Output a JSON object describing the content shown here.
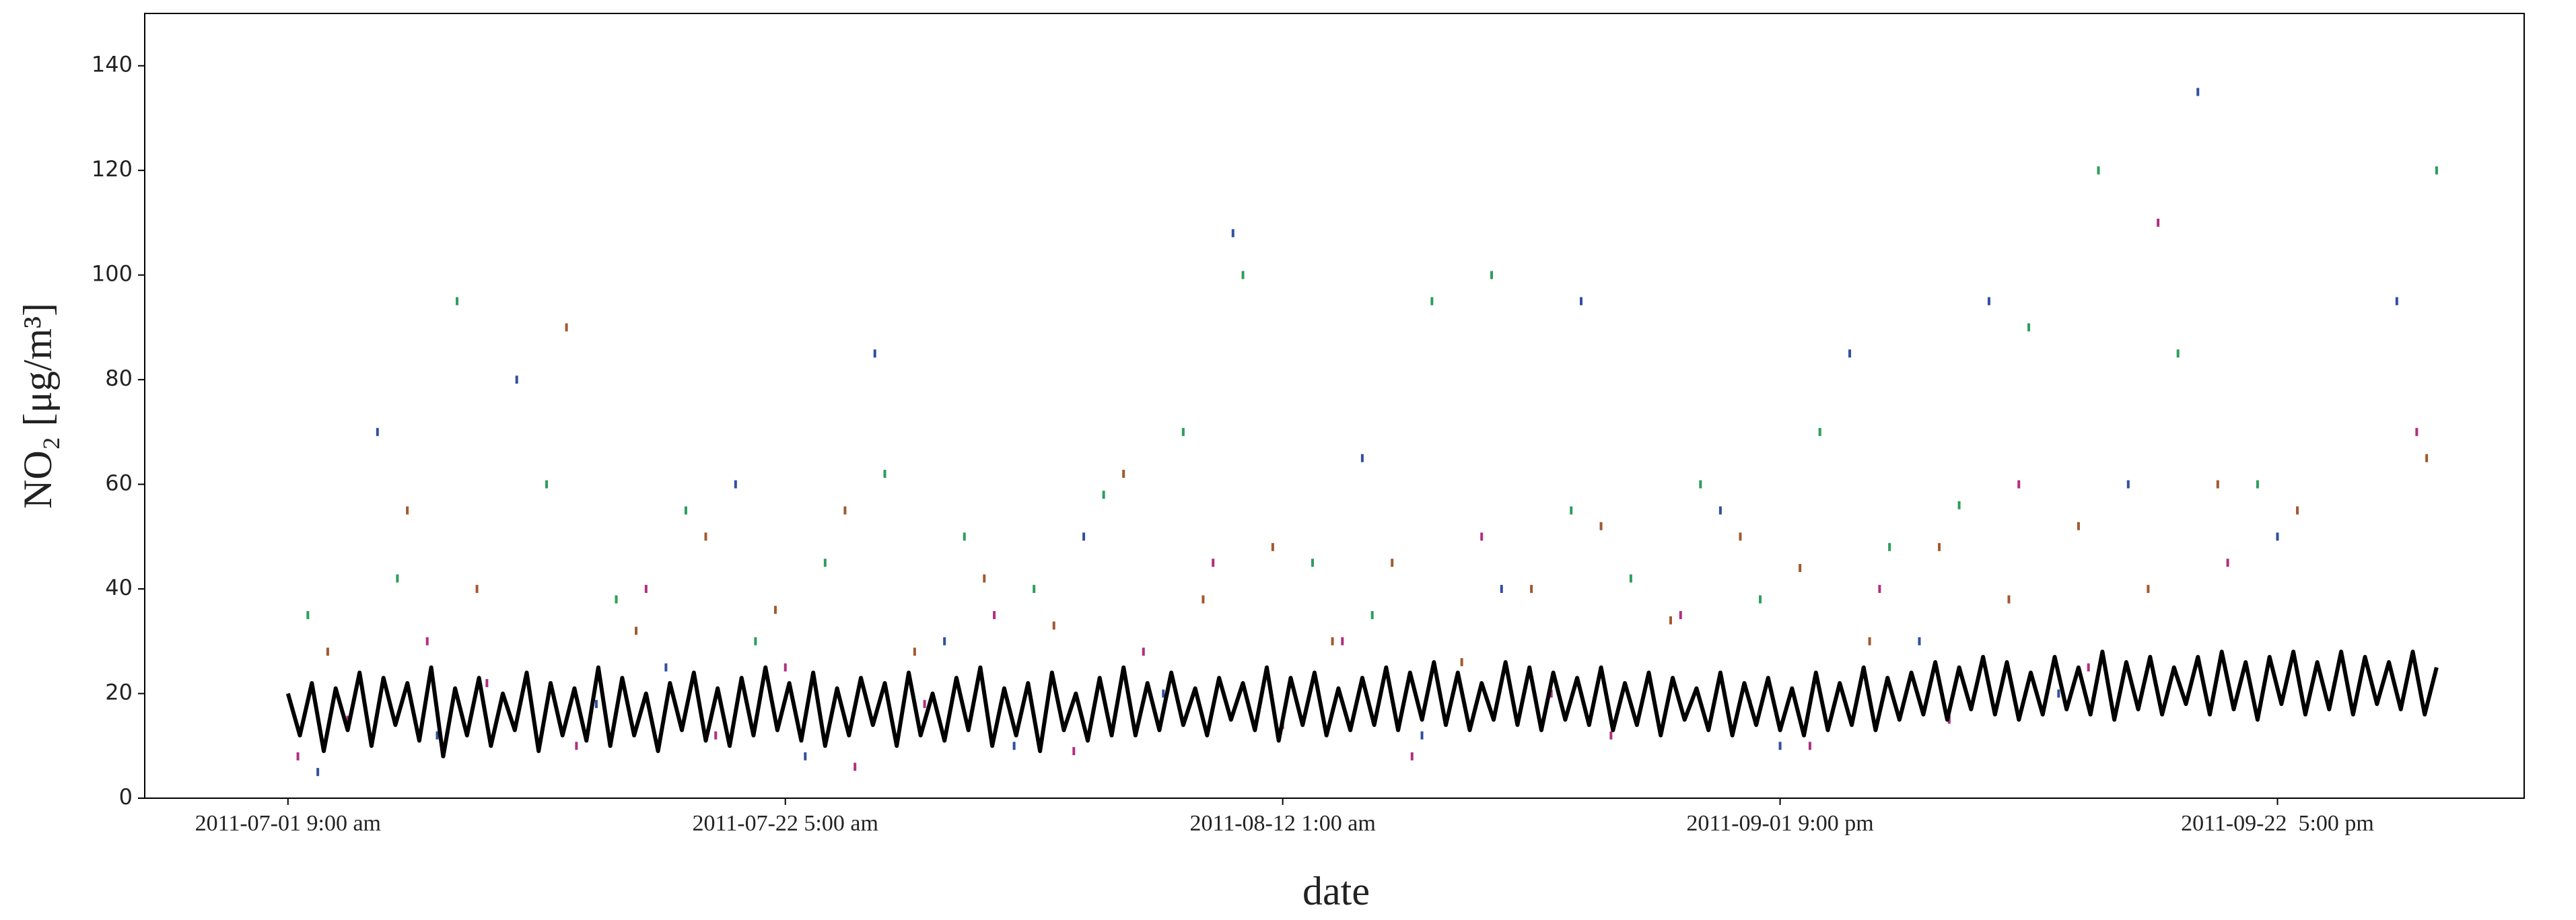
{
  "chart_data": {
    "type": "scatter",
    "y_label": "NO₂ [μg/m³]",
    "x_label": "date",
    "xlim": [
      -144,
      2248
    ],
    "ylim": [
      0,
      150
    ],
    "xticks": [
      {
        "value": 0,
        "label": "2011-07-01 9:00 am"
      },
      {
        "value": 500,
        "label": "2011-07-22 5:00 am"
      },
      {
        "value": 1000,
        "label": "2011-08-12 1:00 am"
      },
      {
        "value": 1500,
        "label": "2011-09-01 9:00 pm"
      },
      {
        "value": 2000,
        "label": "2011-09-22  5:00 pm"
      }
    ],
    "yticks": [
      0,
      20,
      40,
      60,
      80,
      100,
      120,
      140
    ],
    "series": [
      {
        "type": "scatter",
        "color": "#2e9e5b",
        "x": [
          20,
          110,
          170,
          260,
          330,
          400,
          470,
          540,
          600,
          680,
          750,
          820,
          900,
          960,
          1030,
          1090,
          1150,
          1210,
          1290,
          1350,
          1420,
          1480,
          1540,
          1610,
          1680,
          1750,
          1820,
          1900,
          1980,
          2160
        ],
        "values": [
          35,
          42,
          95,
          60,
          38,
          55,
          30,
          45,
          62,
          50,
          40,
          58,
          70,
          100,
          45,
          35,
          95,
          100,
          55,
          42,
          60,
          38,
          70,
          48,
          56,
          90,
          120,
          85,
          60,
          120
        ]
      },
      {
        "type": "scatter",
        "color": "#b03080",
        "x": [
          10,
          60,
          140,
          200,
          290,
          360,
          430,
          500,
          570,
          640,
          710,
          790,
          860,
          930,
          1000,
          1060,
          1130,
          1200,
          1270,
          1330,
          1400,
          1470,
          1530,
          1600,
          1670,
          1740,
          1810,
          1880,
          1950,
          2140
        ],
        "values": [
          8,
          15,
          30,
          22,
          10,
          40,
          12,
          25,
          6,
          18,
          35,
          9,
          28,
          45,
          14,
          30,
          8,
          50,
          20,
          12,
          35,
          18,
          10,
          40,
          15,
          60,
          25,
          110,
          45,
          70
        ]
      },
      {
        "type": "scatter",
        "color": "#3050a0",
        "x": [
          30,
          90,
          150,
          230,
          310,
          380,
          450,
          520,
          590,
          660,
          730,
          800,
          880,
          950,
          1020,
          1080,
          1140,
          1220,
          1300,
          1370,
          1440,
          1500,
          1570,
          1640,
          1710,
          1780,
          1850,
          1920,
          2000,
          2120
        ],
        "values": [
          5,
          70,
          12,
          80,
          18,
          25,
          60,
          8,
          85,
          30,
          10,
          50,
          20,
          108,
          15,
          65,
          12,
          40,
          95,
          22,
          55,
          10,
          85,
          30,
          95,
          20,
          60,
          135,
          50,
          95
        ]
      },
      {
        "type": "scatter",
        "color": "#a05a30",
        "x": [
          40,
          120,
          190,
          280,
          350,
          420,
          490,
          560,
          630,
          700,
          770,
          840,
          920,
          990,
          1050,
          1110,
          1180,
          1250,
          1320,
          1390,
          1460,
          1520,
          1590,
          1660,
          1730,
          1800,
          1870,
          1940,
          2020,
          2150
        ],
        "values": [
          28,
          55,
          40,
          90,
          32,
          50,
          36,
          55,
          28,
          42,
          33,
          62,
          38,
          48,
          30,
          45,
          26,
          40,
          52,
          34,
          50,
          44,
          30,
          48,
          38,
          52,
          40,
          60,
          55,
          65
        ]
      },
      {
        "type": "line",
        "color": "#000000",
        "x": [
          0,
          12,
          24,
          36,
          48,
          60,
          72,
          84,
          96,
          108,
          120,
          132,
          144,
          156,
          168,
          180,
          192,
          204,
          216,
          228,
          240,
          252,
          264,
          276,
          288,
          300,
          312,
          324,
          336,
          348,
          360,
          372,
          384,
          396,
          408,
          420,
          432,
          444,
          456,
          468,
          480,
          492,
          504,
          516,
          528,
          540,
          552,
          564,
          576,
          588,
          600,
          612,
          624,
          636,
          648,
          660,
          672,
          684,
          696,
          708,
          720,
          732,
          744,
          756,
          768,
          780,
          792,
          804,
          816,
          828,
          840,
          852,
          864,
          876,
          888,
          900,
          912,
          924,
          936,
          948,
          960,
          972,
          984,
          996,
          1008,
          1020,
          1032,
          1044,
          1056,
          1068,
          1080,
          1092,
          1104,
          1116,
          1128,
          1140,
          1152,
          1164,
          1176,
          1188,
          1200,
          1212,
          1224,
          1236,
          1248,
          1260,
          1272,
          1284,
          1296,
          1308,
          1320,
          1332,
          1344,
          1356,
          1368,
          1380,
          1392,
          1404,
          1416,
          1428,
          1440,
          1452,
          1464,
          1476,
          1488,
          1500,
          1512,
          1524,
          1536,
          1548,
          1560,
          1572,
          1584,
          1596,
          1608,
          1620,
          1632,
          1644,
          1656,
          1668,
          1680,
          1692,
          1704,
          1716,
          1728,
          1740,
          1752,
          1764,
          1776,
          1788,
          1800,
          1812,
          1824,
          1836,
          1848,
          1860,
          1872,
          1884,
          1896,
          1908,
          1920,
          1932,
          1944,
          1956,
          1968,
          1980,
          1992,
          2004,
          2016,
          2028,
          2040,
          2052,
          2064,
          2076,
          2088,
          2100,
          2112,
          2124,
          2136,
          2148,
          2160
        ],
        "values": [
          20,
          12,
          22,
          9,
          21,
          13,
          24,
          10,
          23,
          14,
          22,
          11,
          25,
          8,
          21,
          12,
          23,
          10,
          20,
          13,
          24,
          9,
          22,
          12,
          21,
          11,
          25,
          10,
          23,
          12,
          20,
          9,
          22,
          13,
          24,
          11,
          21,
          10,
          23,
          12,
          25,
          13,
          22,
          11,
          24,
          10,
          21,
          12,
          23,
          14,
          22,
          10,
          24,
          12,
          20,
          11,
          23,
          13,
          25,
          10,
          21,
          12,
          22,
          9,
          24,
          13,
          20,
          11,
          23,
          12,
          25,
          12,
          22,
          13,
          24,
          14,
          21,
          12,
          23,
          15,
          22,
          13,
          25,
          11,
          23,
          14,
          24,
          12,
          21,
          13,
          23,
          14,
          25,
          13,
          24,
          15,
          26,
          14,
          24,
          13,
          22,
          15,
          26,
          14,
          25,
          13,
          24,
          15,
          23,
          14,
          25,
          13,
          22,
          14,
          24,
          12,
          23,
          15,
          21,
          13,
          24,
          12,
          22,
          14,
          23,
          13,
          21,
          12,
          24,
          13,
          22,
          14,
          25,
          13,
          23,
          15,
          24,
          16,
          26,
          15,
          25,
          17,
          27,
          16,
          26,
          15,
          24,
          16,
          27,
          17,
          25,
          16,
          28,
          15,
          26,
          17,
          27,
          16,
          25,
          18,
          27,
          16,
          28,
          17,
          26,
          15,
          27,
          18,
          28,
          16,
          26,
          17,
          28,
          16,
          27,
          18,
          26,
          17,
          28,
          16,
          25
        ]
      }
    ]
  }
}
